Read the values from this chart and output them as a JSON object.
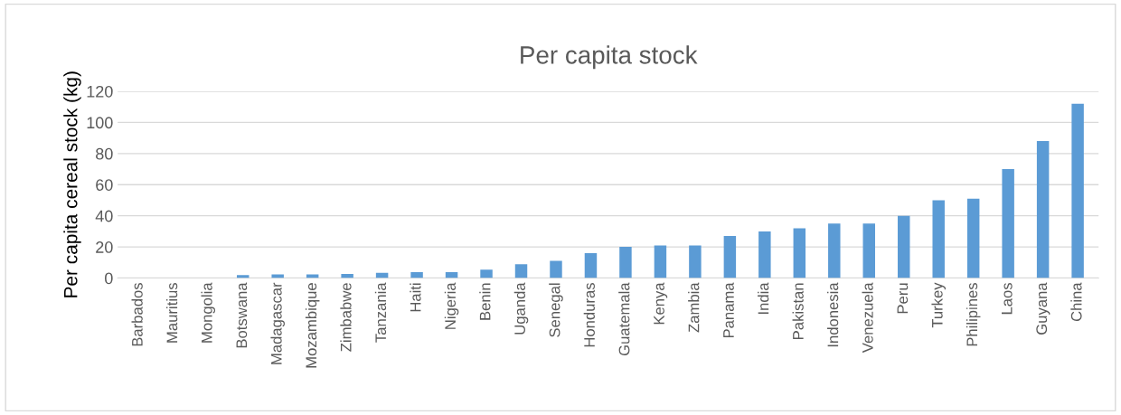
{
  "chart_data": {
    "type": "bar",
    "title": "Per capita stock",
    "ylabel": "Per capita cereal stock (kg)",
    "categories": [
      "Barbados",
      "Mauritius",
      "Mongolia",
      "Botswana",
      "Madagascar",
      "Mozambique",
      "Zimbabwe",
      "Tanzania",
      "Haiti",
      "Nigeria",
      "Benin",
      "Uganda",
      "Senegal",
      "Honduras",
      "Guatemala",
      "Kenya",
      "Zambia",
      "Panama",
      "India",
      "Pakistan",
      "Indonesia",
      "Venezuela",
      "Peru",
      "Turkey",
      "Philipines",
      "Laos",
      "Guyana",
      "China"
    ],
    "values": [
      0,
      0,
      0,
      1.9,
      2.4,
      2.4,
      2.6,
      3.3,
      3.8,
      3.8,
      5.4,
      8.9,
      11,
      16,
      20,
      21,
      21,
      27,
      30,
      32,
      35,
      35,
      40,
      50,
      51,
      70,
      88,
      112
    ],
    "color": "#5b9bd5",
    "ylim": [
      0,
      120
    ],
    "yticks": [
      0,
      20,
      40,
      60,
      80,
      100,
      120
    ],
    "grid": "y",
    "legend": false
  }
}
